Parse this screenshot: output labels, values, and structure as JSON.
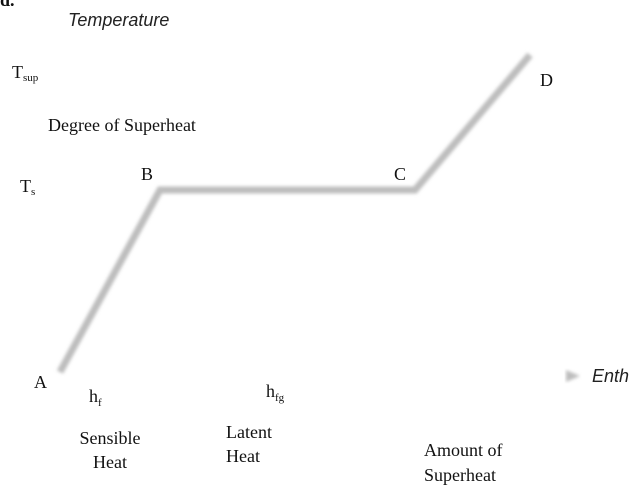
{
  "figure_label": "d.",
  "y_axis": {
    "label": "Temperature",
    "t_sup": {
      "symbol": "T",
      "subscript": "sup"
    },
    "t_s": {
      "symbol": "T",
      "subscript": "s"
    }
  },
  "x_axis": {
    "label": "Enth"
  },
  "points": {
    "a": "A",
    "b": "B",
    "c": "C",
    "d": "D"
  },
  "annotations": {
    "superheat_degree": "Degree of Superheat",
    "h_f": {
      "symbol": "h",
      "subscript": "f"
    },
    "h_fg": {
      "symbol": "h",
      "subscript": "fg"
    },
    "sensible": [
      "Sensible",
      "Heat"
    ],
    "latent": [
      "Latent",
      "Heat"
    ],
    "superheat_amount": [
      "Amount of",
      "Superheat"
    ]
  }
}
